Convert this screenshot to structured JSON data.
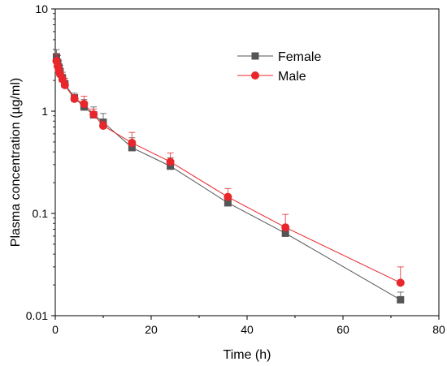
{
  "chart_data": {
    "type": "line",
    "xlabel": "Time (h)",
    "ylabel": "Plasma concentration (µg/ml)",
    "xlim": [
      0,
      80
    ],
    "ylim": [
      0.01,
      10
    ],
    "yscale": "log",
    "x_ticks": [
      0,
      20,
      40,
      60,
      80
    ],
    "x_tick_labels": [
      "0",
      "20",
      "40",
      "60",
      "80"
    ],
    "y_ticks": [
      0.01,
      0.1,
      1,
      10
    ],
    "y_tick_labels": [
      "0.01",
      "0.1",
      "1",
      "10"
    ],
    "grid": false,
    "legend_position": "top-right",
    "series": [
      {
        "name": "Female",
        "color": "#555555",
        "marker": "square",
        "x": [
          0.25,
          0.5,
          0.75,
          1,
          1.5,
          2,
          4,
          6,
          8,
          10,
          16,
          24,
          36,
          48,
          72
        ],
        "y": [
          3.4,
          3.0,
          2.7,
          2.45,
          2.1,
          1.85,
          1.35,
          1.1,
          0.92,
          0.78,
          0.44,
          0.29,
          0.127,
          0.064,
          0.0143
        ],
        "err_upper": [
          4.0,
          3.5,
          3.1,
          2.8,
          2.4,
          2.1,
          1.5,
          1.3,
          1.1,
          0.95,
          0.55,
          0.35,
          0.15,
          0.075,
          0.017
        ]
      },
      {
        "name": "Male",
        "color": "#e8262b",
        "marker": "circle",
        "x": [
          0.25,
          0.5,
          0.75,
          1,
          1.5,
          2,
          4,
          6,
          8,
          10,
          16,
          24,
          36,
          48,
          72
        ],
        "y": [
          3.1,
          2.75,
          2.5,
          2.3,
          2.05,
          1.8,
          1.32,
          1.18,
          0.93,
          0.72,
          0.49,
          0.32,
          0.145,
          0.073,
          0.021
        ],
        "err_upper": [
          3.6,
          3.2,
          2.9,
          2.6,
          2.3,
          2.0,
          1.45,
          1.4,
          1.05,
          0.8,
          0.62,
          0.39,
          0.175,
          0.098,
          0.03
        ]
      }
    ]
  }
}
